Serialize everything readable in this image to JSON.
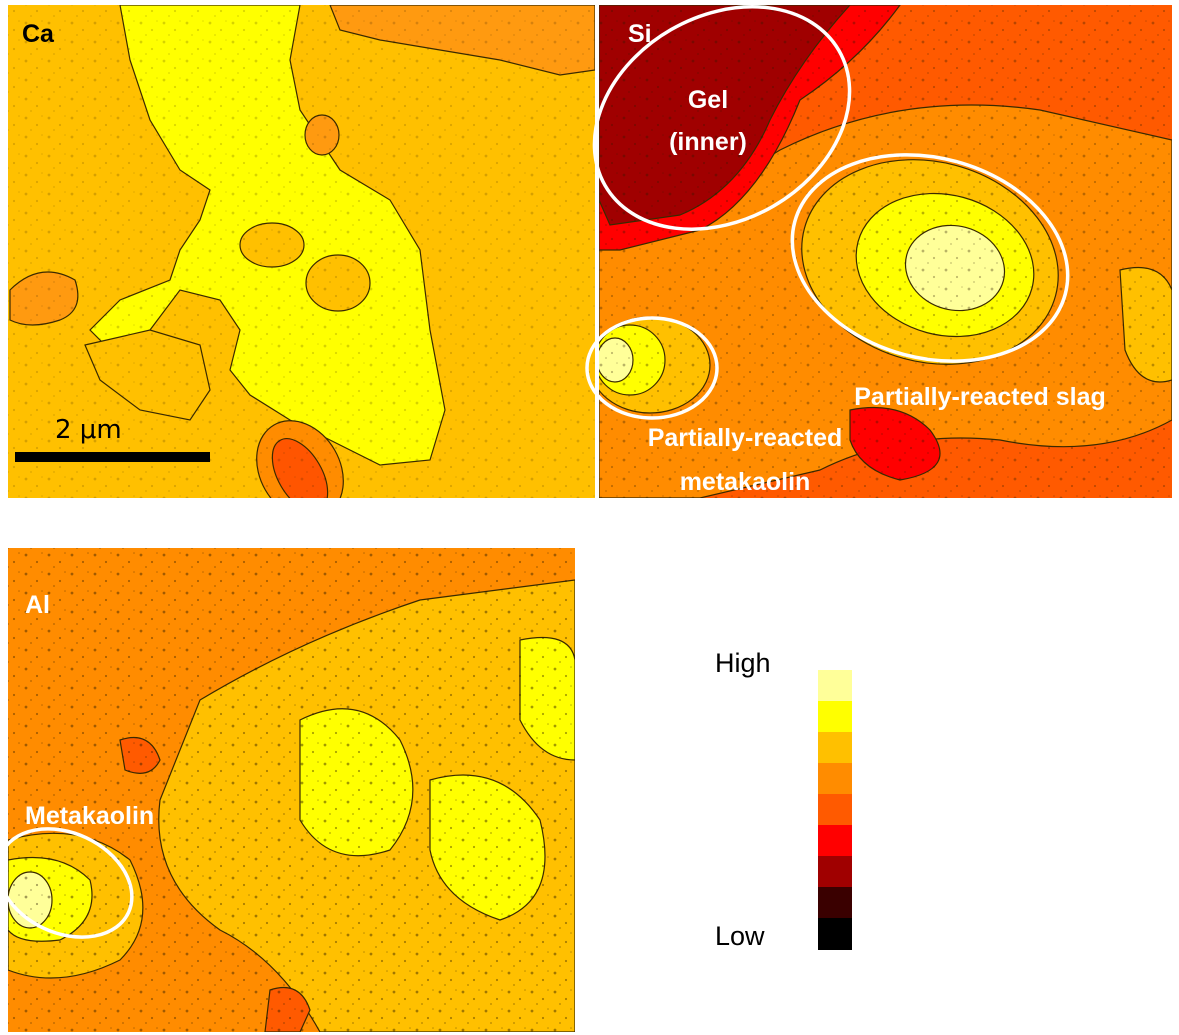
{
  "panels": [
    {
      "label": "Ca",
      "scale_bar": "2 μm"
    },
    {
      "label": "Si",
      "annotations": [
        [
          "Gel",
          "(inner)"
        ],
        [
          "Partially-reacted slag"
        ],
        [
          "Partially-reacted",
          "metakaolin"
        ]
      ]
    },
    {
      "label": "Al",
      "annotations": [
        [
          "Metakaolin"
        ]
      ]
    }
  ],
  "legend": {
    "high": "High",
    "low": "Low"
  }
}
